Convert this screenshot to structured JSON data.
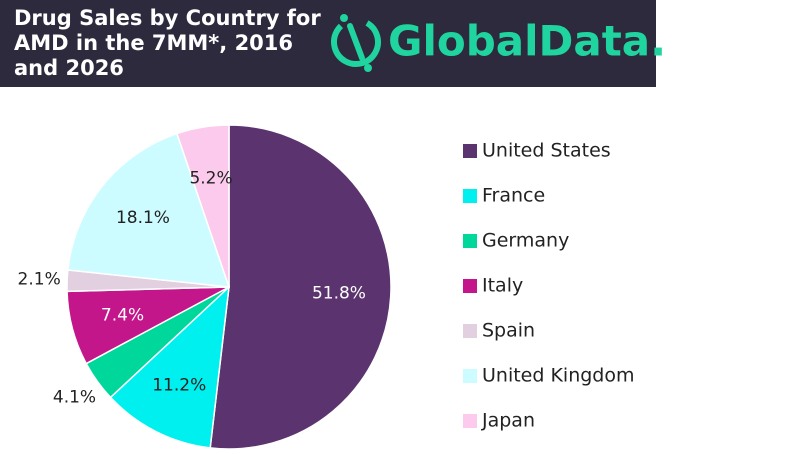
{
  "header": {
    "logo": "GlobalData."
  },
  "chart_data": {
    "type": "pie",
    "title": [
      "Drug Sales by Country for",
      "AMD in the 7MM*, 2016",
      "and 2026"
    ],
    "categories": [
      "United States",
      "France",
      "Germany",
      "Italy",
      "Spain",
      "United Kingdom",
      "Japan"
    ],
    "values": [
      51.8,
      11.2,
      4.1,
      7.4,
      2.1,
      18.1,
      5.2
    ],
    "value_labels": [
      "51.8%",
      "11.2%",
      "4.1%",
      "7.4%",
      "2.1%",
      "18.1%",
      "5.2%"
    ],
    "colors": [
      "#5b336e",
      "#00f0ef",
      "#00d89b",
      "#c3168a",
      "#e2cfe0",
      "#ccfcff",
      "#fccaec"
    ],
    "legend": "right"
  }
}
